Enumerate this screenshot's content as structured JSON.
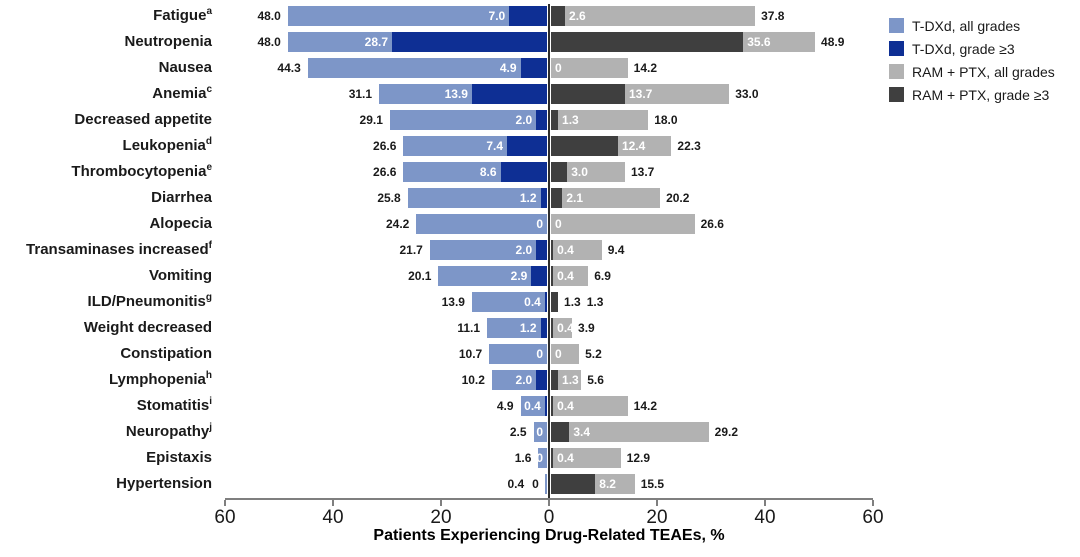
{
  "chart_data": {
    "type": "bar",
    "variant": "diverging-horizontal",
    "xlabel": "Patients Experiencing Drug-Related TEAEs, %",
    "x_tick_labels": [
      "60",
      "40",
      "20",
      "0",
      "20",
      "40",
      "60"
    ],
    "x_max_each_side": 60,
    "grid": false,
    "legend_position": "top-right",
    "series": [
      {
        "key": "tdxd_all",
        "name": "T-DXd, all grades",
        "color": "#7D96C8",
        "side": "left"
      },
      {
        "key": "tdxd_g3",
        "name": "T-DXd, grade ≥3",
        "color": "#0E2F94",
        "side": "left"
      },
      {
        "key": "ram_all",
        "name": "RAM + PTX, all grades",
        "color": "#B2B2B2",
        "side": "right"
      },
      {
        "key": "ram_g3",
        "name": "RAM + PTX, grade ≥3",
        "color": "#3F3F3F",
        "side": "right"
      }
    ],
    "rows": [
      {
        "event": "Fatigue",
        "sup": "a",
        "tdxd_all": "48.0",
        "tdxd_g3": "7.0",
        "ram_all": "37.8",
        "ram_g3": "2.6",
        "left_label_pos": "inside",
        "right_label_pos": "inside"
      },
      {
        "event": "Neutropenia",
        "sup": "",
        "tdxd_all": "48.0",
        "tdxd_g3": "28.7",
        "ram_all": "48.9",
        "ram_g3": "35.6",
        "left_label_pos": "inside",
        "right_label_pos": "inside"
      },
      {
        "event": "Nausea",
        "sup": "",
        "tdxd_all": "44.3",
        "tdxd_g3": "4.9",
        "ram_all": "14.2",
        "ram_g3": "0",
        "left_label_pos": "inside",
        "right_label_pos": "inside"
      },
      {
        "event": "Anemia",
        "sup": "c",
        "tdxd_all": "31.1",
        "tdxd_g3": "13.9",
        "ram_all": "33.0",
        "ram_g3": "13.7",
        "left_label_pos": "inside",
        "right_label_pos": "inside"
      },
      {
        "event": "Decreased appetite",
        "sup": "",
        "tdxd_all": "29.1",
        "tdxd_g3": "2.0",
        "ram_all": "18.0",
        "ram_g3": "1.3",
        "left_label_pos": "inside",
        "right_label_pos": "inside"
      },
      {
        "event": "Leukopenia",
        "sup": "d",
        "tdxd_all": "26.6",
        "tdxd_g3": "7.4",
        "ram_all": "22.3",
        "ram_g3": "12.4",
        "left_label_pos": "inside",
        "right_label_pos": "inside"
      },
      {
        "event": "Thrombocytopenia",
        "sup": "e",
        "tdxd_all": "26.6",
        "tdxd_g3": "8.6",
        "ram_all": "13.7",
        "ram_g3": "3.0",
        "left_label_pos": "inside",
        "right_label_pos": "inside"
      },
      {
        "event": "Diarrhea",
        "sup": "",
        "tdxd_all": "25.8",
        "tdxd_g3": "1.2",
        "ram_all": "20.2",
        "ram_g3": "2.1",
        "left_label_pos": "inside",
        "right_label_pos": "inside"
      },
      {
        "event": "Alopecia",
        "sup": "",
        "tdxd_all": "24.2",
        "tdxd_g3": "0",
        "ram_all": "26.6",
        "ram_g3": "0",
        "left_label_pos": "inside",
        "right_label_pos": "inside"
      },
      {
        "event": "Transaminases increased",
        "sup": "f",
        "tdxd_all": "21.7",
        "tdxd_g3": "2.0",
        "ram_all": "9.4",
        "ram_g3": "0.4",
        "left_label_pos": "inside",
        "right_label_pos": "inside"
      },
      {
        "event": "Vomiting",
        "sup": "",
        "tdxd_all": "20.1",
        "tdxd_g3": "2.9",
        "ram_all": "6.9",
        "ram_g3": "0.4",
        "left_label_pos": "inside",
        "right_label_pos": "inside"
      },
      {
        "event": "ILD/Pneumonitis",
        "sup": "g",
        "tdxd_all": "13.9",
        "tdxd_g3": "0.4",
        "ram_all": "1.3",
        "ram_g3": "1.3",
        "left_label_pos": "inside",
        "right_label_pos": "outside"
      },
      {
        "event": "Weight decreased",
        "sup": "",
        "tdxd_all": "11.1",
        "tdxd_g3": "1.2",
        "ram_all": "3.9",
        "ram_g3": "0.4",
        "left_label_pos": "inside",
        "right_label_pos": "inside"
      },
      {
        "event": "Constipation",
        "sup": "",
        "tdxd_all": "10.7",
        "tdxd_g3": "0",
        "ram_all": "5.2",
        "ram_g3": "0",
        "left_label_pos": "inside",
        "right_label_pos": "inside"
      },
      {
        "event": "Lymphopenia",
        "sup": "h",
        "tdxd_all": "10.2",
        "tdxd_g3": "2.0",
        "ram_all": "5.6",
        "ram_g3": "1.3",
        "left_label_pos": "inside",
        "right_label_pos": "inside"
      },
      {
        "event": "Stomatitis",
        "sup": "i",
        "tdxd_all": "4.9",
        "tdxd_g3": "0.4",
        "ram_all": "14.2",
        "ram_g3": "0.4",
        "left_label_pos": "inside",
        "right_label_pos": "inside"
      },
      {
        "event": "Neuropathy",
        "sup": "j",
        "tdxd_all": "2.5",
        "tdxd_g3": "0",
        "ram_all": "29.2",
        "ram_g3": "3.4",
        "left_label_pos": "inside",
        "right_label_pos": "inside"
      },
      {
        "event": "Epistaxis",
        "sup": "",
        "tdxd_all": "1.6",
        "tdxd_g3": "0",
        "ram_all": "12.9",
        "ram_g3": "0.4",
        "left_label_pos": "inside",
        "right_label_pos": "inside"
      },
      {
        "event": "Hypertension",
        "sup": "",
        "tdxd_all": "0.4",
        "tdxd_g3": "0",
        "ram_all": "15.5",
        "ram_g3": "8.2",
        "left_label_pos": "outside",
        "right_label_pos": "inside"
      }
    ]
  }
}
